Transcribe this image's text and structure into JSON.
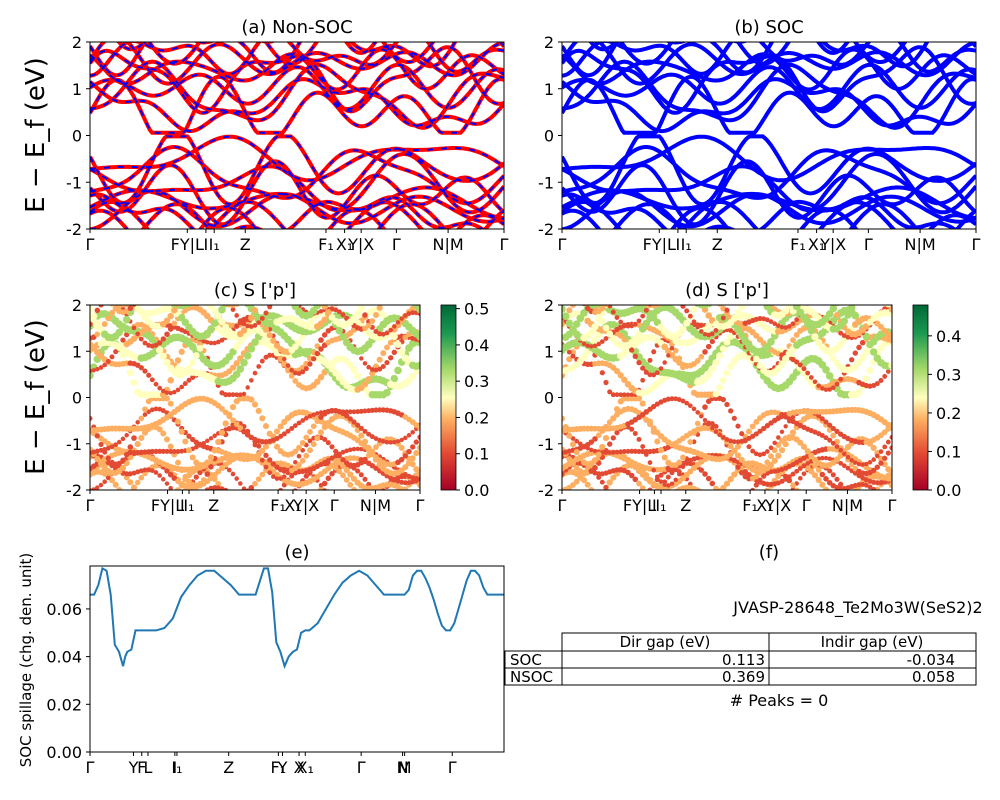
{
  "chart_data": [
    {
      "id": "a",
      "type": "line",
      "title": "(a) Non-SOC",
      "ylabel": "E − E_f (eV)",
      "ylim": [
        -2,
        2
      ],
      "yticks": [
        -2,
        -1,
        0,
        1,
        2
      ],
      "xticks": [
        "Γ",
        "FY|L",
        "I",
        "I₁",
        "Z",
        "F₁",
        "X₁",
        "Y|X",
        "Γ",
        "N|M",
        "Γ"
      ],
      "series": [
        {
          "color": "#ff0000",
          "style": "solid"
        },
        {
          "color": "#0000ff",
          "style": "dashed"
        }
      ]
    },
    {
      "id": "b",
      "type": "line",
      "title": "(b) SOC",
      "ylim": [
        -2,
        2
      ],
      "yticks": [
        -2,
        -1,
        0,
        1,
        2
      ],
      "xticks": [
        "Γ",
        "FY|L",
        "I",
        "I₁",
        "Z",
        "F₁",
        "X₁",
        "Y|X",
        "Γ",
        "N|M",
        "Γ"
      ],
      "series": [
        {
          "color": "#0000ff",
          "style": "solid"
        }
      ]
    },
    {
      "id": "c",
      "type": "scatter",
      "title": "(c)  S ['p']",
      "ylabel": "E − E_f (eV)",
      "ylim": [
        -2,
        2
      ],
      "yticks": [
        -2,
        -1,
        0,
        1,
        2
      ],
      "xticks": [
        "Γ",
        "FY|L",
        "I",
        "I₁",
        "Z",
        "F₁",
        "X₁",
        "Y|X",
        "Γ",
        "N|M",
        "Γ"
      ],
      "colorbar": {
        "min": 0.0,
        "max": 0.51,
        "ticks": [
          "0.0",
          "0.1",
          "0.2",
          "0.3",
          "0.4",
          "0.5"
        ],
        "colormap": "RdYlGn"
      }
    },
    {
      "id": "d",
      "type": "scatter",
      "title": "(d) S ['p']",
      "ylim": [
        -2,
        2
      ],
      "yticks": [
        -2,
        -1,
        0,
        1,
        2
      ],
      "xticks": [
        "Γ",
        "FY|L",
        "I",
        "I₁",
        "Z",
        "F₁",
        "X₁",
        "Y|X",
        "Γ",
        "N|M",
        "Γ"
      ],
      "colorbar": {
        "min": 0.0,
        "max": 0.48,
        "ticks": [
          "0.0",
          "0.1",
          "0.2",
          "0.3",
          "0.4"
        ],
        "colormap": "RdYlGn"
      }
    },
    {
      "id": "e",
      "type": "line",
      "title": "(e)",
      "ylabel": "SOC spillage (chg. den. unit)",
      "ylim": [
        0,
        0.078
      ],
      "yticks": [
        "0.00",
        "0.02",
        "0.04",
        "0.06"
      ],
      "xticks": [
        "Γ",
        "Y",
        "F",
        "L",
        "I",
        "I₁",
        "Z",
        "F₁",
        "Y",
        "X",
        "X₁",
        "Γ",
        "N",
        "M",
        "Γ"
      ],
      "series": [
        {
          "color": "#1f77b4",
          "x": [
            0,
            0.01,
            0.02,
            0.03,
            0.04,
            0.05,
            0.06,
            0.07,
            0.08,
            0.085,
            0.09,
            0.1,
            0.11,
            0.12,
            0.13,
            0.14,
            0.16,
            0.18,
            0.2,
            0.22,
            0.24,
            0.26,
            0.28,
            0.3,
            0.32,
            0.34,
            0.36,
            0.38,
            0.4,
            0.42,
            0.43,
            0.44,
            0.45,
            0.46,
            0.47,
            0.48,
            0.49,
            0.5,
            0.51,
            0.52,
            0.53,
            0.55,
            0.57,
            0.59,
            0.61,
            0.63,
            0.65,
            0.67,
            0.69,
            0.71,
            0.72,
            0.73,
            0.74,
            0.75,
            0.76,
            0.77,
            0.78,
            0.79,
            0.8,
            0.81,
            0.82,
            0.83,
            0.84,
            0.85,
            0.86,
            0.87,
            0.88,
            0.89,
            0.9,
            0.91,
            0.92,
            0.93,
            0.94,
            0.95,
            0.96,
            0.97,
            0.98,
            1.0
          ],
          "y": [
            0.066,
            0.066,
            0.07,
            0.077,
            0.076,
            0.066,
            0.045,
            0.042,
            0.036,
            0.04,
            0.042,
            0.043,
            0.051,
            0.051,
            0.051,
            0.051,
            0.051,
            0.052,
            0.056,
            0.065,
            0.07,
            0.074,
            0.076,
            0.076,
            0.073,
            0.07,
            0.066,
            0.066,
            0.066,
            0.077,
            0.077,
            0.067,
            0.046,
            0.042,
            0.036,
            0.04,
            0.042,
            0.043,
            0.05,
            0.051,
            0.051,
            0.054,
            0.06,
            0.066,
            0.071,
            0.074,
            0.076,
            0.074,
            0.07,
            0.066,
            0.066,
            0.066,
            0.066,
            0.066,
            0.066,
            0.068,
            0.074,
            0.076,
            0.076,
            0.073,
            0.069,
            0.064,
            0.058,
            0.053,
            0.051,
            0.051,
            0.054,
            0.06,
            0.066,
            0.072,
            0.076,
            0.076,
            0.074,
            0.069,
            0.066,
            0.066,
            0.066,
            0.066
          ]
        }
      ]
    }
  ],
  "panel_f": {
    "title": "(f)",
    "material": "JVASP-28648_Te2Mo3W(SeS2)2",
    "table": {
      "headers": [
        "",
        "Dir gap (eV)",
        "Indir gap (eV)"
      ],
      "rows": [
        {
          "label": "SOC",
          "dir": "0.113",
          "indir": "-0.034"
        },
        {
          "label": "NSOC",
          "dir": "0.369",
          "indir": "0.058"
        }
      ]
    },
    "peaks": "# Peaks = 0"
  }
}
